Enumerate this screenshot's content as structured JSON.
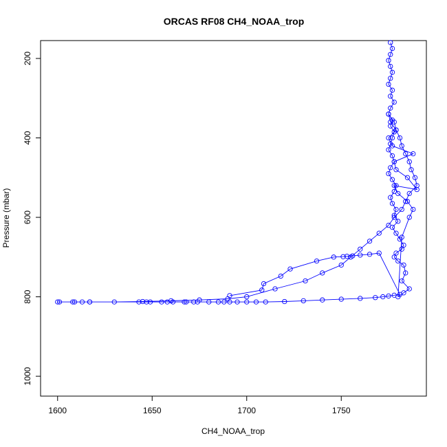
{
  "chart_data": {
    "type": "line",
    "title": "ORCAS RF08 CH4_NOAA_trop",
    "xlabel": "CH4_NOAA_trop",
    "ylabel": "Pressure (mbar)",
    "xlim": [
      1591,
      1795
    ],
    "ylim": [
      1050,
      155
    ],
    "y_reversed": true,
    "x_ticks": [
      1600,
      1650,
      1700,
      1750
    ],
    "y_ticks": [
      200,
      400,
      600,
      800,
      1000
    ],
    "grid": false,
    "legend": "none",
    "colors": {
      "series": "#0000ff",
      "axis": "#000000"
    },
    "series": [
      {
        "marker": "open-circle",
        "x": [
          1776,
          1777,
          1776,
          1775,
          1776,
          1777,
          1776,
          1775,
          1777,
          1776,
          1778,
          1776,
          1775,
          1777,
          1776,
          1778,
          1777,
          1776,
          1775,
          1777,
          1778,
          1776,
          1775,
          1777,
          1779,
          1778,
          1776,
          1777,
          1779,
          1778,
          1780,
          1777,
          1779,
          1781,
          1783,
          1782,
          1779,
          1778,
          1780,
          1783,
          1784,
          1782,
          1786,
          1783,
          1780,
          1782,
          1786,
          1788,
          1785,
          1780,
          1778,
          1790,
          1785,
          1779,
          1778,
          1788,
          1777,
          1775,
          1779,
          1776,
          1775,
          1778,
          1779,
          1781,
          1782,
          1784,
          1786,
          1787,
          1789,
          1790,
          1786,
          1784,
          1782,
          1778,
          1775,
          1770,
          1765,
          1760,
          1755,
          1750,
          1740,
          1731,
          1715,
          1700,
          1690,
          1675,
          1660,
          1645,
          1630,
          1617,
          1608,
          1600,
          1601,
          1609,
          1613,
          1617,
          1643,
          1647,
          1649,
          1655,
          1658,
          1661,
          1667,
          1668,
          1672,
          1674,
          1680,
          1685,
          1688,
          1691,
          1695,
          1700,
          1705,
          1710,
          1720,
          1730,
          1740,
          1750,
          1760,
          1768,
          1772,
          1775,
          1778,
          1781,
          1770,
          1765,
          1760,
          1756,
          1753,
          1751,
          1746,
          1737,
          1723,
          1718,
          1709,
          1708,
          1691
        ],
        "y": [
          160,
          175,
          190,
          205,
          220,
          235,
          250,
          265,
          280,
          295,
          310,
          325,
          340,
          355,
          370,
          385,
          400,
          415,
          430,
          445,
          460,
          475,
          490,
          505,
          520,
          535,
          550,
          565,
          580,
          595,
          610,
          625,
          640,
          655,
          670,
          680,
          690,
          700,
          710,
          720,
          740,
          760,
          780,
          790,
          800,
          650,
          600,
          580,
          560,
          540,
          520,
          530,
          500,
          480,
          460,
          440,
          420,
          400,
          380,
          360,
          340,
          360,
          380,
          400,
          420,
          440,
          460,
          480,
          500,
          520,
          540,
          560,
          580,
          600,
          620,
          640,
          660,
          680,
          700,
          720,
          740,
          760,
          780,
          800,
          805,
          808,
          810,
          812,
          813,
          813,
          813,
          813,
          813,
          813,
          813,
          813,
          813,
          813,
          813,
          813,
          813,
          813,
          813,
          813,
          813,
          813,
          813,
          813,
          813,
          813,
          813,
          813,
          813,
          813,
          812,
          810,
          808,
          806,
          804,
          802,
          800,
          798,
          796,
          794,
          690,
          693,
          695,
          697,
          698,
          699,
          700,
          710,
          730,
          748,
          767,
          783,
          797
        ]
      }
    ]
  }
}
